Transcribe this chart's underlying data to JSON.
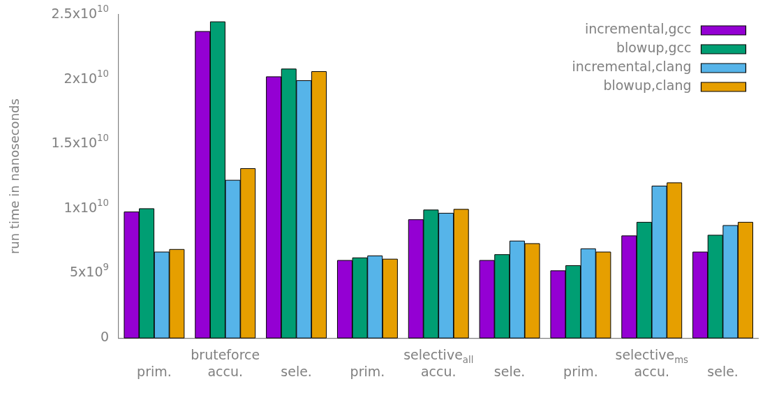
{
  "chart_data": {
    "type": "bar",
    "ylabel": "run time in nanoseconds",
    "categories": [
      "prim.",
      "accu.",
      "sele.",
      "prim.",
      "accu.",
      "sele.",
      "prim.",
      "accu.",
      "sele."
    ],
    "annotations": [
      "bruteforce",
      "selective$_{all}$",
      "selective$_{ms}$"
    ],
    "series": [
      {
        "name": "incremental,gcc",
        "color": "#9400d3",
        "values": [
          9750000000.0,
          23700000000.0,
          20200000000.0,
          6000000000.0,
          9150000000.0,
          6000000000.0,
          5200000000.0,
          7900000000.0,
          6650000000.0
        ]
      },
      {
        "name": "blowup,gcc",
        "color": "#009e73",
        "values": [
          10000000000.0,
          24450000000.0,
          20800000000.0,
          6200000000.0,
          9900000000.0,
          6450000000.0,
          5600000000.0,
          8950000000.0,
          7950000000.0
        ]
      },
      {
        "name": "incremental,clang",
        "color": "#56b4e9",
        "values": [
          6650000000.0,
          12200000000.0,
          19900000000.0,
          6350000000.0,
          9650000000.0,
          7500000000.0,
          6900000000.0,
          11750000000.0,
          8700000000.0
        ]
      },
      {
        "name": "blowup,clang",
        "color": "#e69f00",
        "values": [
          6850000000.0,
          13100000000.0,
          20600000000.0,
          6100000000.0,
          9950000000.0,
          7300000000.0,
          6650000000.0,
          12000000000.0,
          8950000000.0
        ]
      }
    ],
    "ylim": [
      0,
      25000000000.0
    ],
    "yticks": [
      0,
      {
        "value": 5000000000.0,
        "label": "5x10$^{9}$"
      },
      {
        "value": 10000000000.0,
        "label": "1x10$^{10}$"
      },
      {
        "value": 15000000000.0,
        "label": "1.5x10$^{10}$"
      },
      {
        "value": 20000000000.0,
        "label": "2x10$^{10}$"
      },
      {
        "value": 25000000000.0,
        "label": "2.5x10$^{10}$"
      }
    ],
    "grid": false,
    "legend": "top right"
  }
}
